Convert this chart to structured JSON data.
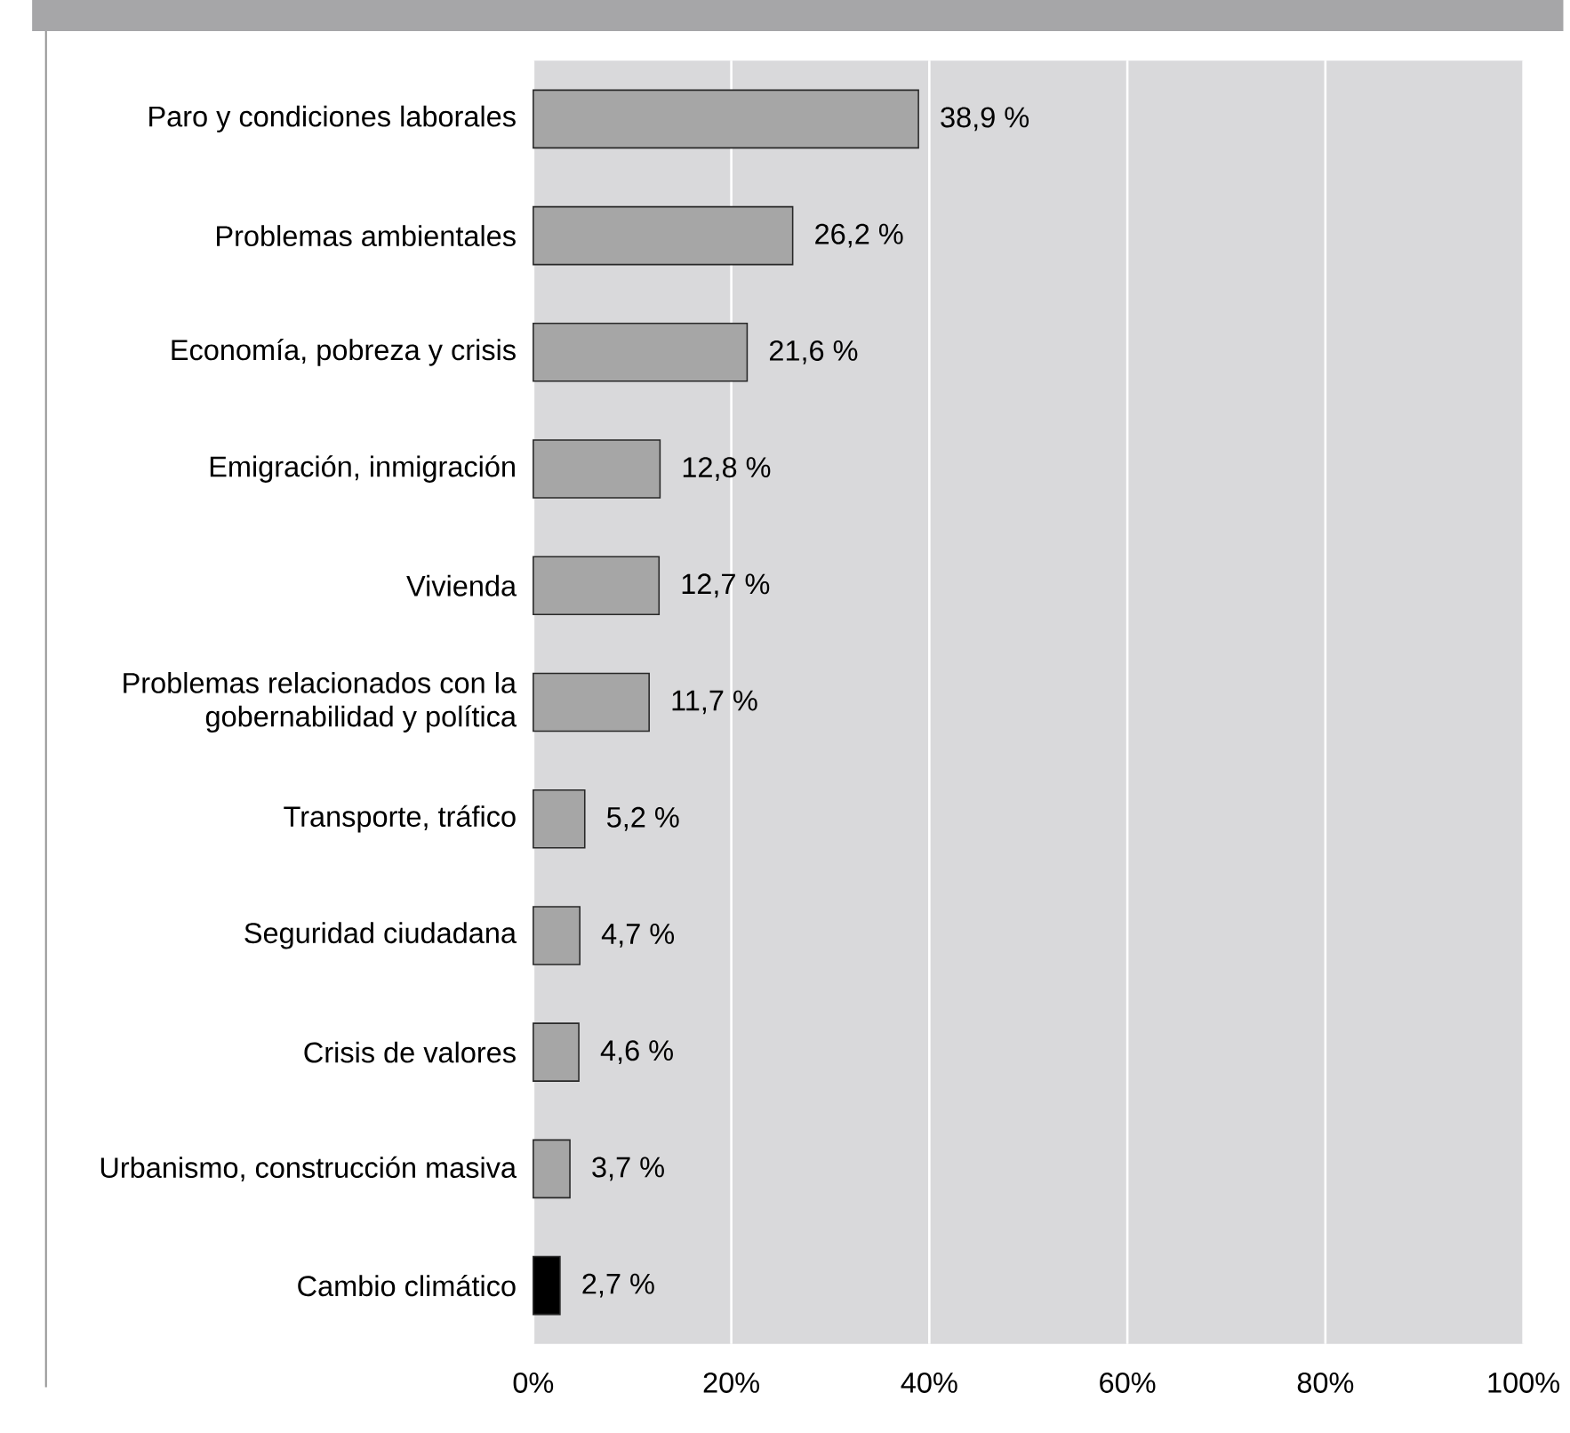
{
  "chart_data": {
    "type": "bar",
    "orientation": "horizontal",
    "categories": [
      "Paro y condiciones laborales",
      "Problemas ambientales",
      "Economía, pobreza y crisis",
      "Emigración, inmigración",
      "Vivienda",
      "Problemas relacionados con la gobernabilidad y política",
      "Transporte, tráfico",
      "Seguridad ciudadana",
      "Crisis de valores",
      "Urbanismo, construcción masiva",
      "Cambio climático"
    ],
    "values": [
      38.9,
      26.2,
      21.6,
      12.8,
      12.7,
      11.7,
      5.2,
      4.7,
      4.6,
      3.7,
      2.7
    ],
    "value_labels": [
      "38,9 %",
      "26,2 %",
      "21,6 %",
      "12,8 %",
      "12,7 %",
      "11,7 %",
      "5,2 %",
      "4,7 %",
      "4,6 %",
      "3,7 %",
      "2,7 %"
    ],
    "colors": [
      "#a6a6a6",
      "#a6a6a6",
      "#a6a6a6",
      "#a6a6a6",
      "#a6a6a6",
      "#a6a6a6",
      "#a6a6a6",
      "#a6a6a6",
      "#a6a6a6",
      "#a6a6a6",
      "#000000"
    ],
    "xlim": [
      0,
      100
    ],
    "xticks": [
      {
        "value": 0,
        "label": "0%"
      },
      {
        "value": 20,
        "label": "20%"
      },
      {
        "value": 40,
        "label": "40%"
      },
      {
        "value": 60,
        "label": "60%"
      },
      {
        "value": 80,
        "label": "80%"
      },
      {
        "value": 100,
        "label": "100%"
      }
    ],
    "grid": "x"
  }
}
